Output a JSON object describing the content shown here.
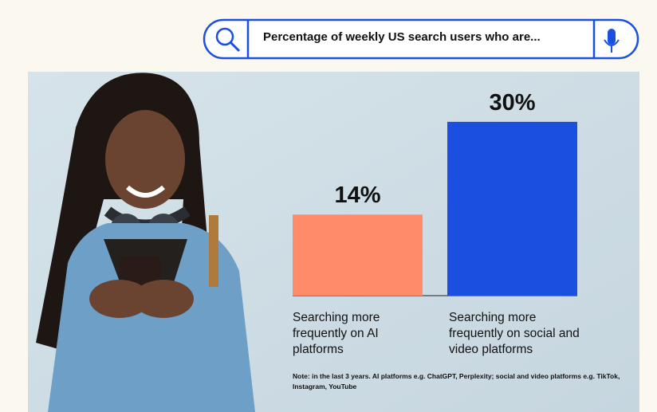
{
  "chart_data": {
    "type": "bar",
    "title": "Percentage of weekly US search users who are...",
    "categories": [
      "Searching more frequently on AI platforms",
      "Searching more frequently on social and video platforms"
    ],
    "values": [
      14,
      30
    ],
    "value_labels": [
      "14%",
      "30%"
    ],
    "colors": [
      "#ff8b6a",
      "#1a4fe0"
    ],
    "note": "Note: in the last 3 years. AI platforms e.g. ChatGPT, Perplexity; social and video platforms e.g. TikTok, Instagram, YouTube"
  }
}
